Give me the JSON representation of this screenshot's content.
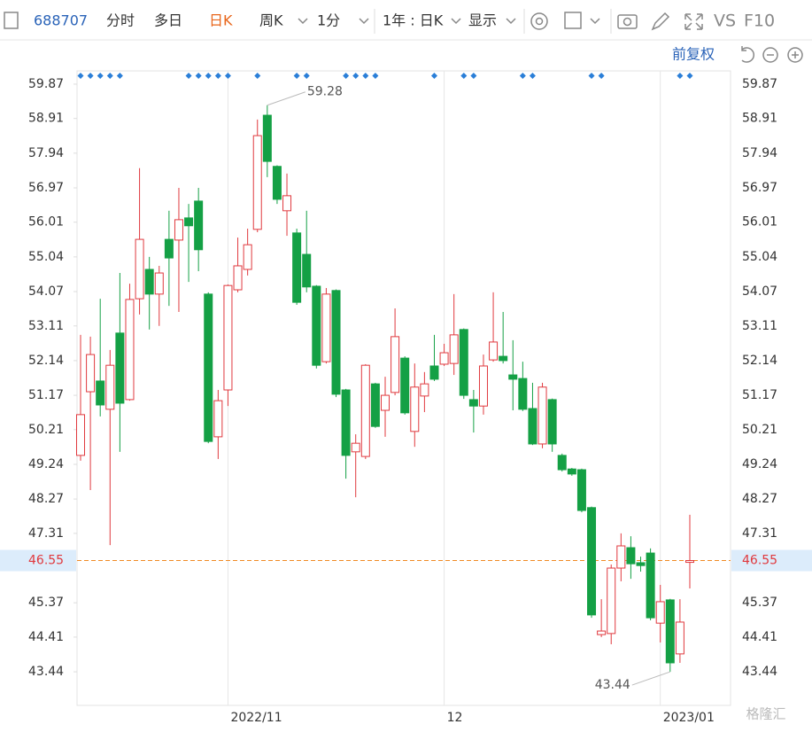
{
  "toolbar": {
    "code": "688707",
    "tabs": [
      "分时",
      "多日",
      "日K",
      "周K",
      "1分"
    ],
    "active_tab": 2,
    "period": "1年 : 日K",
    "display": "显示",
    "vs": "VS",
    "f10": "F10",
    "adjust": "前复权"
  },
  "watermark": "格隆汇",
  "chart_data": {
    "type": "candlestick",
    "categories": [
      null,
      null,
      null,
      null,
      null,
      null,
      null,
      null,
      null,
      null,
      null,
      null,
      null,
      null,
      null,
      "2022/11",
      null,
      null,
      null,
      null,
      null,
      null,
      null,
      null,
      null,
      null,
      null,
      null,
      null,
      null,
      null,
      null,
      null,
      null,
      null,
      null,
      null,
      "12",
      null,
      null,
      null,
      null,
      null,
      null,
      null,
      null,
      null,
      null,
      null,
      null,
      null,
      null,
      null,
      null,
      null,
      null,
      null,
      null,
      null,
      "2023/01",
      null,
      null,
      null
    ],
    "open": [
      49.49,
      51.27,
      51.57,
      50.78,
      52.91,
      51.05,
      53.87,
      54.69,
      54.0,
      55.53,
      55.51,
      56.13,
      56.6,
      54.0,
      50.01,
      51.32,
      54.12,
      54.69,
      55.81,
      59.0,
      57.57,
      56.33,
      55.71,
      55.11,
      54.22,
      52.11,
      54.1,
      51.32,
      49.59,
      49.46,
      51.49,
      50.75,
      51.25,
      52.21,
      50.16,
      51.15,
      51.99,
      52.04,
      52.06,
      53.01,
      51.05,
      50.87,
      52.16,
      52.26,
      51.74,
      51.64,
      50.8,
      49.81,
      51.05,
      49.49,
      49.11,
      49.09,
      48.03,
      44.48,
      44.51,
      46.34,
      46.91,
      46.49,
      46.76,
      44.8,
      45.45,
      43.94,
      46.5
    ],
    "high": [
      52.86,
      52.81,
      53.87,
      52.44,
      54.59,
      54.29,
      57.52,
      55.04,
      54.79,
      56.33,
      56.97,
      56.52,
      56.97,
      54.05,
      51.32,
      54.27,
      55.58,
      55.83,
      58.88,
      59.28,
      57.6,
      57.37,
      55.83,
      56.33,
      54.25,
      54.17,
      54.13,
      51.35,
      50.08,
      52.04,
      51.52,
      51.69,
      53.6,
      52.26,
      52.06,
      51.82,
      52.86,
      52.61,
      54.0,
      53.04,
      51.32,
      52.31,
      54.05,
      53.5,
      52.71,
      52.11,
      51.52,
      51.52,
      51.08,
      49.54,
      49.14,
      49.12,
      48.06,
      45.47,
      46.44,
      47.31,
      47.23,
      46.66,
      46.89,
      45.87,
      45.48,
      45.47,
      47.83
    ],
    "low": [
      49.34,
      48.52,
      50.58,
      46.98,
      49.59,
      51.02,
      53.43,
      53.01,
      53.11,
      53.67,
      53.5,
      54.34,
      54.64,
      49.83,
      49.39,
      50.87,
      54.05,
      54.52,
      55.73,
      57.27,
      56.52,
      55.63,
      53.7,
      54.05,
      51.92,
      52.06,
      51.12,
      48.84,
      48.32,
      49.39,
      50.26,
      50.01,
      51.17,
      50.63,
      49.73,
      50.7,
      51.57,
      51.99,
      51.74,
      51.07,
      50.13,
      50.63,
      52.11,
      52.06,
      50.75,
      50.73,
      49.78,
      49.69,
      49.59,
      49.04,
      48.92,
      47.9,
      44.95,
      44.41,
      44.21,
      45.97,
      46.04,
      46.24,
      44.88,
      44.26,
      43.44,
      43.69,
      45.77
    ],
    "close": [
      50.63,
      52.31,
      50.9,
      52.01,
      50.95,
      53.85,
      55.53,
      54.0,
      54.59,
      55.01,
      56.08,
      55.91,
      55.24,
      49.88,
      51.02,
      54.24,
      54.79,
      55.38,
      58.43,
      57.71,
      56.65,
      56.75,
      53.77,
      54.2,
      52.01,
      54.0,
      51.2,
      49.49,
      49.83,
      52.01,
      50.3,
      51.17,
      52.81,
      50.68,
      51.4,
      51.49,
      51.62,
      52.36,
      52.86,
      51.17,
      50.87,
      51.99,
      52.66,
      52.14,
      51.62,
      50.78,
      49.81,
      51.4,
      49.81,
      49.09,
      48.97,
      47.95,
      45.03,
      44.58,
      46.34,
      46.96,
      46.46,
      46.41,
      44.95,
      45.4,
      43.69,
      44.83,
      46.55
    ],
    "up_color": "#e0393e",
    "down_color": "#14a045",
    "ylim": [
      42.5,
      60.24
    ],
    "yticks": [
      59.87,
      58.91,
      57.94,
      56.97,
      56.01,
      55.04,
      54.07,
      53.11,
      52.14,
      51.17,
      50.21,
      49.24,
      48.27,
      47.31,
      45.37,
      44.41,
      43.44
    ],
    "last_price": 46.55,
    "last_color": "#f08a24",
    "annotations": [
      {
        "text": "59.28",
        "index": 19,
        "value": 59.28
      },
      {
        "text": "43.44",
        "index": 60,
        "value": 43.44
      }
    ]
  }
}
